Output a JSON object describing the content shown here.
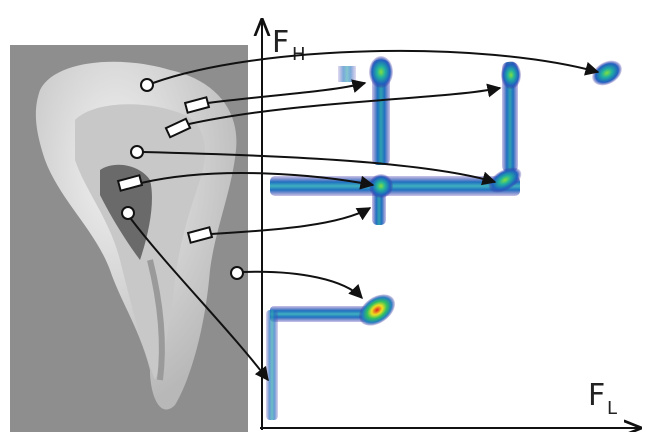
{
  "axes": {
    "vertical": {
      "letter": "F",
      "subscript": "H"
    },
    "horizontal": {
      "letter": "F",
      "subscript": "L"
    }
  }
}
